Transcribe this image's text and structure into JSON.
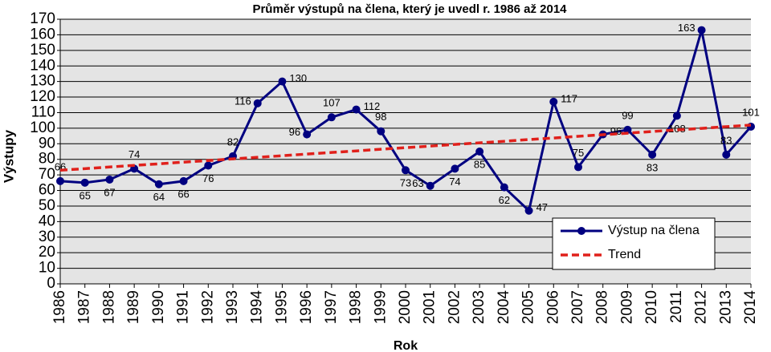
{
  "chart_data": {
    "type": "line",
    "title": "Průměr výstupů na člena, který je uvedl r. 1986 až 2014",
    "x_label": "Rok",
    "y_label": "Výstupy",
    "categories": [
      "1986",
      "1987",
      "1988",
      "1989",
      "1990",
      "1991",
      "1992",
      "1993",
      "1994",
      "1995",
      "1996",
      "1997",
      "1998",
      "1999",
      "2000",
      "2001",
      "2002",
      "2003",
      "2004",
      "2005",
      "2006",
      "2007",
      "2008",
      "2009",
      "2010",
      "2011",
      "2012",
      "2013",
      "2014"
    ],
    "series": [
      {
        "name": "Výstup na člena",
        "color": "#000080",
        "values": [
          66,
          65,
          67,
          74,
          64,
          66,
          76,
          82,
          116,
          130,
          96,
          107,
          112,
          98,
          73,
          63,
          74,
          85,
          62,
          47,
          117,
          75,
          96,
          99,
          83,
          108,
          163,
          83,
          101
        ]
      },
      {
        "name": "Trend",
        "color": "#e0201b",
        "values": [
          73,
          74.0,
          75.1,
          76.1,
          77.1,
          78.2,
          79.2,
          80.3,
          81.3,
          82.3,
          83.4,
          84.4,
          85.4,
          86.5,
          87.5,
          88.5,
          89.6,
          90.6,
          91.6,
          92.7,
          93.7,
          94.8,
          95.8,
          96.8,
          97.9,
          98.9,
          99.9,
          101.0,
          102
        ]
      }
    ],
    "ylim": [
      0,
      170
    ],
    "yticks": [
      0,
      10,
      20,
      30,
      40,
      50,
      60,
      70,
      80,
      90,
      100,
      110,
      120,
      130,
      140,
      150,
      160,
      170
    ],
    "grid": true
  }
}
